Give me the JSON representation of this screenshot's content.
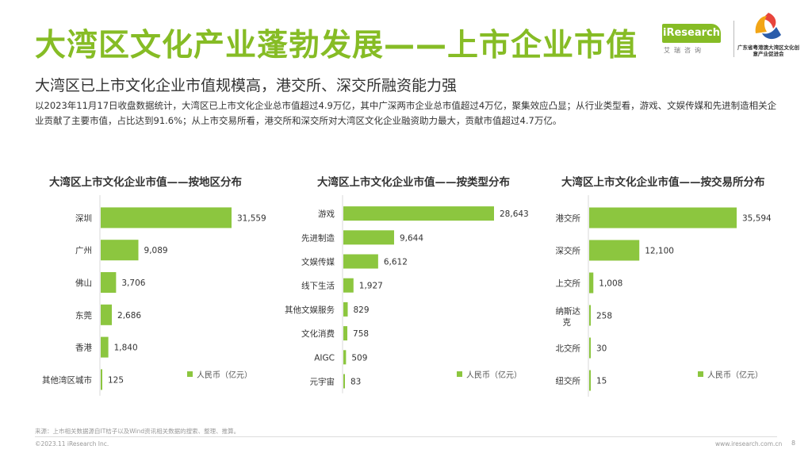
{
  "header": {
    "title": "大湾区文化产业蓬勃发展——上市企业市值",
    "subtitle": "大湾区已上市文化企业市值规模高，港交所、深交所融资能力强",
    "description": "以2023年11月17日收盘数据统计，大湾区已上市文化企业总市值超过4.9万亿，其中广深两市企业总市值超过4万亿，聚集效应凸显；从行业类型看，游戏、文娱传媒和先进制造相关企业贡献了主要市值，占比达到91.6%；从上市交易所看，港交所和深交所对大湾区文化企业融资助力最大，贡献市值超过4.7万亿。"
  },
  "logos": {
    "iresearch_tag": "iResearch",
    "iresearch_cn": "艾瑞咨询",
    "gd_name": "广东省粤港澳大湾区文化创意产业促进会"
  },
  "colors": {
    "accent": "#86bc25",
    "bar": "#8cc63f"
  },
  "chart_data": [
    {
      "type": "bar",
      "orientation": "horizontal",
      "title": "大湾区上市文化企业市值——按地区分布",
      "categories": [
        "深圳",
        "广州",
        "佛山",
        "东莞",
        "香港",
        "其他湾区城市"
      ],
      "series": [
        {
          "name": "人民币（亿元）",
          "values": [
            31559,
            9089,
            3706,
            2686,
            1840,
            125
          ]
        }
      ],
      "value_labels": [
        "31,559",
        "9,089",
        "3,706",
        "2,686",
        "1,840",
        "125"
      ],
      "legend": "bottom-right"
    },
    {
      "type": "bar",
      "orientation": "horizontal",
      "title": "大湾区上市文化企业市值——按类型分布",
      "categories": [
        "游戏",
        "先进制造",
        "文娱传媒",
        "线下生活",
        "其他文娱服务",
        "文化消费",
        "AIGC",
        "元宇宙"
      ],
      "series": [
        {
          "name": "人民币（亿元）",
          "values": [
            28643,
            9644,
            6612,
            1927,
            829,
            758,
            509,
            83
          ]
        }
      ],
      "value_labels": [
        "28,643",
        "9,644",
        "6,612",
        "1,927",
        "829",
        "758",
        "509",
        "83"
      ],
      "legend": "bottom-right"
    },
    {
      "type": "bar",
      "orientation": "horizontal",
      "title": "大湾区上市文化企业市值——按交易所分布",
      "categories": [
        "港交所",
        "深交所",
        "上交所",
        "纳斯达克",
        "北交所",
        "纽交所"
      ],
      "series": [
        {
          "name": "人民币（亿元）",
          "values": [
            35594,
            12100,
            1008,
            258,
            30,
            15
          ]
        }
      ],
      "value_labels": [
        "35,594",
        "12,100",
        "1,008",
        "258",
        "30",
        "15"
      ],
      "legend": "bottom-right"
    }
  ],
  "footer": {
    "source": "来源：上市相关数据源自IT桔子以及Wind资讯相关数据的搜索、整理、推算。",
    "copyright": "©2023.11 iResearch Inc.",
    "website": "www.iresearch.com.cn",
    "page": "8"
  }
}
